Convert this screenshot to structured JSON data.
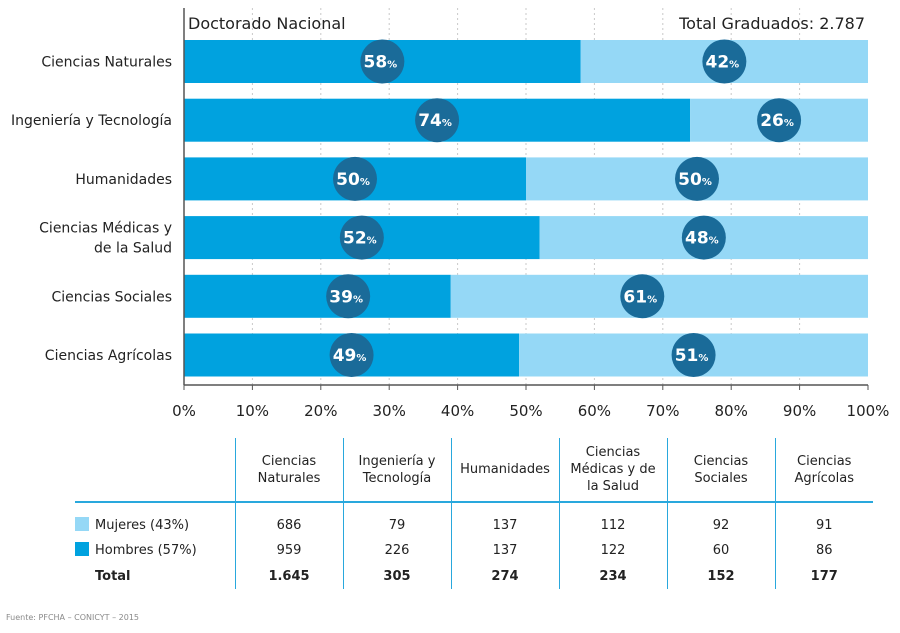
{
  "chart_data": {
    "type": "bar",
    "stacked": true,
    "orientation": "horizontal",
    "title": "Doctorado Nacional",
    "subtitle": "Total Graduados: 2.787",
    "categories": [
      "Ciencias Naturales",
      "Ingeniería y Tecnología",
      "Humanidades",
      "Ciencias Médicas y de la Salud",
      "Ciencias Sociales",
      "Ciencias Agrícolas"
    ],
    "category_lines": [
      [
        "Ciencias Naturales"
      ],
      [
        "Ingeniería y Tecnología"
      ],
      [
        "Humanidades"
      ],
      [
        "Ciencias Médicas y",
        "de la Salud"
      ],
      [
        "Ciencias Sociales"
      ],
      [
        "Ciencias Agrícolas"
      ]
    ],
    "series": [
      {
        "name": "Hombres",
        "color": "#00a2df",
        "values": [
          58,
          74,
          50,
          52,
          39,
          49
        ]
      },
      {
        "name": "Mujeres",
        "color": "#95d8f6",
        "values": [
          42,
          26,
          50,
          48,
          61,
          51
        ]
      }
    ],
    "label_color": "#1a6b99",
    "grid": true,
    "xlim": [
      0,
      100
    ],
    "xticks": [
      0,
      10,
      20,
      30,
      40,
      50,
      60,
      70,
      80,
      90,
      100
    ],
    "tick_suffix": "%"
  },
  "table": {
    "headers": [
      "Ciencias\nNaturales",
      "Ingeniería y\nTecnología",
      "Humanidades",
      "Ciencias\nMédicas y de\nla Salud",
      "Ciencias\nSociales",
      "Ciencias\nAgrícolas"
    ],
    "rows": [
      {
        "label": "Mujeres (43%)",
        "swatch": "#95d8f6",
        "values": [
          "686",
          "79",
          "137",
          "112",
          "92",
          "91"
        ]
      },
      {
        "label": "Hombres (57%)",
        "swatch": "#00a2df",
        "values": [
          "959",
          "226",
          "137",
          "122",
          "60",
          "86"
        ]
      },
      {
        "label": "Total",
        "swatch": "",
        "values": [
          "1.645",
          "305",
          "274",
          "234",
          "152",
          "177"
        ]
      }
    ]
  },
  "source": "Fuente: PFCHA – CONICYT – 2015"
}
